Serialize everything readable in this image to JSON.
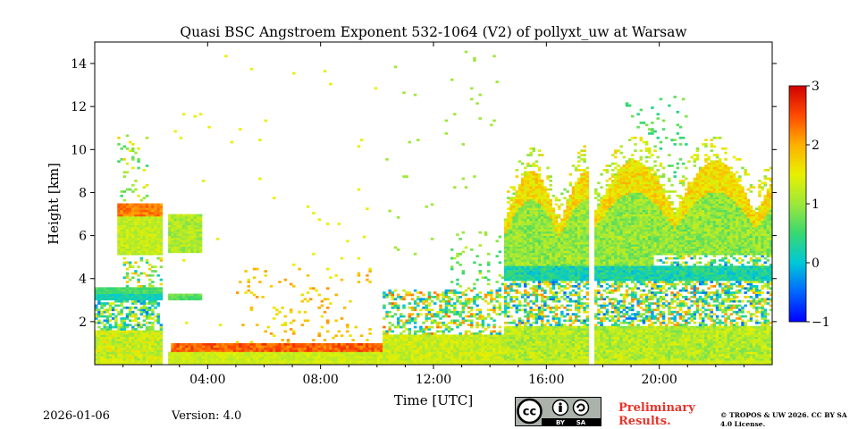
{
  "chart_data": {
    "type": "heatmap",
    "title": "Quasi BSC Angstroem Exponent 532-1064 (V2) of pollyxt_uw at Warsaw",
    "xlabel": "Time [UTC]",
    "ylabel": "Height [km]",
    "x_range_hours": [
      0,
      24
    ],
    "ylim": [
      0,
      15
    ],
    "x_ticks": [
      {
        "value": 4,
        "label": "04:00"
      },
      {
        "value": 8,
        "label": "08:00"
      },
      {
        "value": 12,
        "label": "12:00"
      },
      {
        "value": 16,
        "label": "16:00"
      },
      {
        "value": 20,
        "label": "20:00"
      }
    ],
    "y_ticks": [
      {
        "value": 2,
        "label": "2"
      },
      {
        "value": 4,
        "label": "4"
      },
      {
        "value": 6,
        "label": "6"
      },
      {
        "value": 8,
        "label": "8"
      },
      {
        "value": 10,
        "label": "10"
      },
      {
        "value": 12,
        "label": "12"
      },
      {
        "value": 14,
        "label": "14"
      }
    ],
    "colorbar": {
      "range": [
        -1,
        3
      ],
      "ticks": [
        {
          "value": 3,
          "label": "3"
        },
        {
          "value": 2,
          "label": "2"
        },
        {
          "value": 1,
          "label": "1"
        },
        {
          "value": 0,
          "label": "0"
        },
        {
          "value": -1,
          "label": "−1"
        }
      ],
      "colormap": "jet"
    },
    "data_gaps_hours": [
      2.55,
      17.55
    ],
    "regions": [
      {
        "name": "early-aerosol-layer",
        "t0": 0.8,
        "t1": 2.5,
        "h0": 5.1,
        "h1": 7.5,
        "value": 1.4
      },
      {
        "name": "early-layer-2",
        "t0": 2.6,
        "t1": 3.8,
        "h0": 5.2,
        "h1": 7.0,
        "value": 1.0
      },
      {
        "name": "cyan-band-early",
        "t0": 0.0,
        "t1": 2.5,
        "h0": 3.0,
        "h1": 3.6,
        "value": 0.2
      },
      {
        "name": "surface-red-band",
        "t0": 2.7,
        "t1": 10.2,
        "h0": 0.6,
        "h1": 1.0,
        "value": 2.4
      },
      {
        "name": "afternoon-residual-layer",
        "t0": 14.5,
        "t1": 17.5,
        "h0": 4.0,
        "h1": 9.5,
        "value": 0.8
      },
      {
        "name": "evening-residual-layer",
        "t0": 17.7,
        "t1": 24.0,
        "h0": 4.0,
        "h1": 9.8,
        "value": 1.0
      },
      {
        "name": "boundary-layer",
        "t0": 0.0,
        "t1": 24.0,
        "h0": 0.0,
        "h1": 2.0,
        "value": 0.9
      }
    ]
  },
  "footer": {
    "date": "2026-01-06",
    "version": "Version: 4.0",
    "preliminary": "Preliminary Results.",
    "copyright": "© TROPOS & UW 2026. CC BY SA 4.0 License.",
    "cc_text": "cc",
    "cc_by": "BY",
    "cc_sa": "SA"
  }
}
